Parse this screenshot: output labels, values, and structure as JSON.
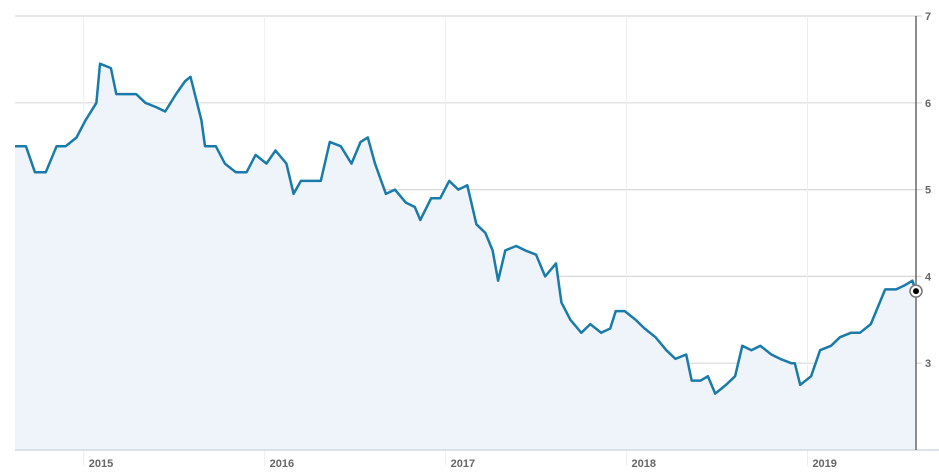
{
  "chart_data": {
    "type": "area",
    "title": "",
    "xlabel": "",
    "ylabel": "",
    "xlim": [
      2014.62,
      2019.6
    ],
    "ylim": [
      2,
      7
    ],
    "grid": true,
    "legend": "none",
    "line_color": "#1a7bab",
    "fill_color": "#eef4fa",
    "x_ticks": [
      {
        "value": 2015,
        "label": "2015"
      },
      {
        "value": 2016,
        "label": "2016"
      },
      {
        "value": 2017,
        "label": "2017"
      },
      {
        "value": 2018,
        "label": "2018"
      },
      {
        "value": 2019,
        "label": "2019"
      }
    ],
    "y_ticks": [
      {
        "value": 3,
        "label": "3"
      },
      {
        "value": 4,
        "label": "4"
      },
      {
        "value": 5,
        "label": "5"
      },
      {
        "value": 6,
        "label": "6"
      },
      {
        "value": 7,
        "label": "7"
      }
    ],
    "series": [
      {
        "x": [
          2014.62,
          2014.68,
          2014.73,
          2014.79,
          2014.85,
          2014.9,
          2014.96,
          2015.01,
          2015.07,
          2015.09,
          2015.15,
          2015.18,
          2015.23,
          2015.29,
          2015.34,
          2015.4,
          2015.45,
          2015.51,
          2015.56,
          2015.59,
          2015.65,
          2015.67,
          2015.73,
          2015.78,
          2015.84,
          2015.9,
          2015.95,
          2016.01,
          2016.06,
          2016.12,
          2016.16,
          2016.2,
          2016.25,
          2016.31,
          2016.36,
          2016.42,
          2016.48,
          2016.53,
          2016.57,
          2016.61,
          2016.67,
          2016.72,
          2016.78,
          2016.83,
          2016.86,
          2016.92,
          2016.97,
          2017.02,
          2017.07,
          2017.12,
          2017.17,
          2017.22,
          2017.26,
          2017.29,
          2017.33,
          2017.39,
          2017.44,
          2017.5,
          2017.55,
          2017.61,
          2017.64,
          2017.69,
          2017.75,
          2017.8,
          2017.86,
          2017.91,
          2017.94,
          2017.99,
          2018.05,
          2018.1,
          2018.16,
          2018.22,
          2018.27,
          2018.33,
          2018.36,
          2018.41,
          2018.45,
          2018.49,
          2018.55,
          2018.6,
          2018.64,
          2018.69,
          2018.74,
          2018.8,
          2018.85,
          2018.91,
          2018.93,
          2018.96,
          2019.02,
          2019.07,
          2019.13,
          2019.18,
          2019.24,
          2019.29,
          2019.35,
          2019.4,
          2019.43,
          2019.49,
          2019.54,
          2019.58,
          2019.6
        ],
        "y": [
          5.5,
          5.5,
          5.2,
          5.2,
          5.5,
          5.5,
          5.6,
          5.8,
          6.0,
          6.45,
          6.4,
          6.1,
          6.1,
          6.1,
          6.0,
          5.95,
          5.9,
          6.1,
          6.25,
          6.3,
          5.8,
          5.5,
          5.5,
          5.3,
          5.2,
          5.2,
          5.4,
          5.3,
          5.45,
          5.3,
          4.95,
          5.1,
          5.1,
          5.1,
          5.55,
          5.5,
          5.3,
          5.55,
          5.6,
          5.3,
          4.95,
          5.0,
          4.85,
          4.8,
          4.65,
          4.9,
          4.9,
          5.1,
          5.0,
          5.05,
          4.6,
          4.5,
          4.3,
          3.95,
          4.3,
          4.35,
          4.3,
          4.25,
          4.0,
          4.15,
          3.7,
          3.5,
          3.35,
          3.45,
          3.35,
          3.4,
          3.6,
          3.6,
          3.5,
          3.4,
          3.3,
          3.15,
          3.05,
          3.1,
          2.8,
          2.8,
          2.85,
          2.65,
          2.75,
          2.85,
          3.2,
          3.15,
          3.2,
          3.1,
          3.05,
          3.0,
          3.0,
          2.75,
          2.85,
          3.15,
          3.2,
          3.3,
          3.35,
          3.35,
          3.45,
          3.7,
          3.85,
          3.85,
          3.9,
          3.95,
          3.83
        ]
      }
    ]
  }
}
